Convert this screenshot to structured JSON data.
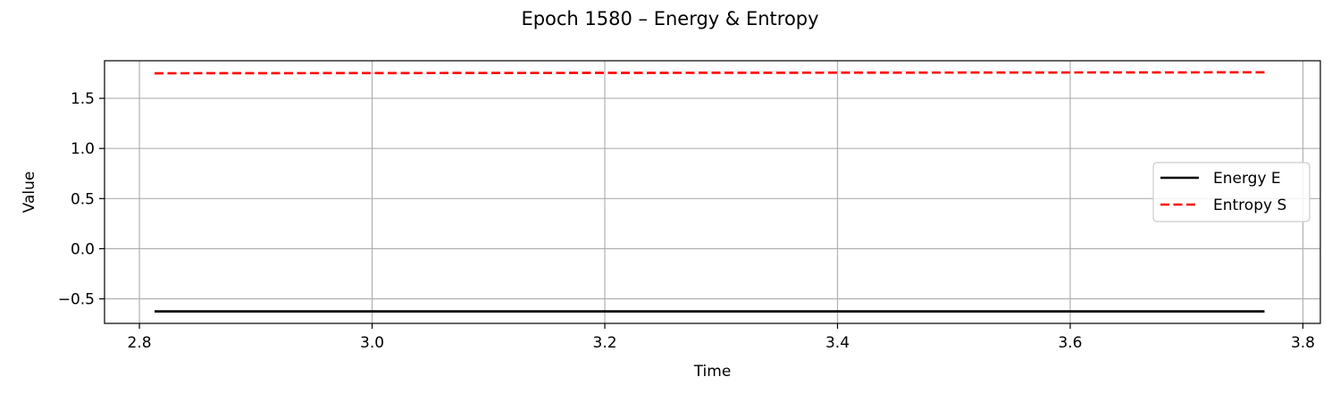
{
  "chart_data": {
    "type": "line",
    "title": "Epoch 1580 – Energy & Entropy",
    "xlabel": "Time",
    "ylabel": "Value",
    "xlim": [
      2.77,
      3.815
    ],
    "ylim": [
      -0.745,
      1.875
    ],
    "xticks": [
      2.8,
      3.0,
      3.2,
      3.4,
      3.6,
      3.8
    ],
    "xtick_labels": [
      "2.8",
      "3.0",
      "3.2",
      "3.4",
      "3.6",
      "3.8"
    ],
    "yticks": [
      -0.5,
      0.0,
      0.5,
      1.0,
      1.5
    ],
    "ytick_labels": [
      "−0.5",
      "0.0",
      "0.5",
      "1.0",
      "1.5"
    ],
    "grid": true,
    "legend_position": "center-right",
    "series": [
      {
        "name": "Energy E",
        "color": "#000000",
        "style": "solid",
        "x": [
          2.813,
          3.1,
          3.4,
          3.7,
          3.767
        ],
        "values": [
          -0.625,
          -0.625,
          -0.625,
          -0.625,
          -0.625
        ]
      },
      {
        "name": "Entropy S",
        "color": "#ff0000",
        "style": "dashed",
        "x": [
          2.813,
          3.1,
          3.4,
          3.7,
          3.767
        ],
        "values": [
          1.75,
          1.753,
          1.756,
          1.759,
          1.76
        ]
      }
    ]
  }
}
